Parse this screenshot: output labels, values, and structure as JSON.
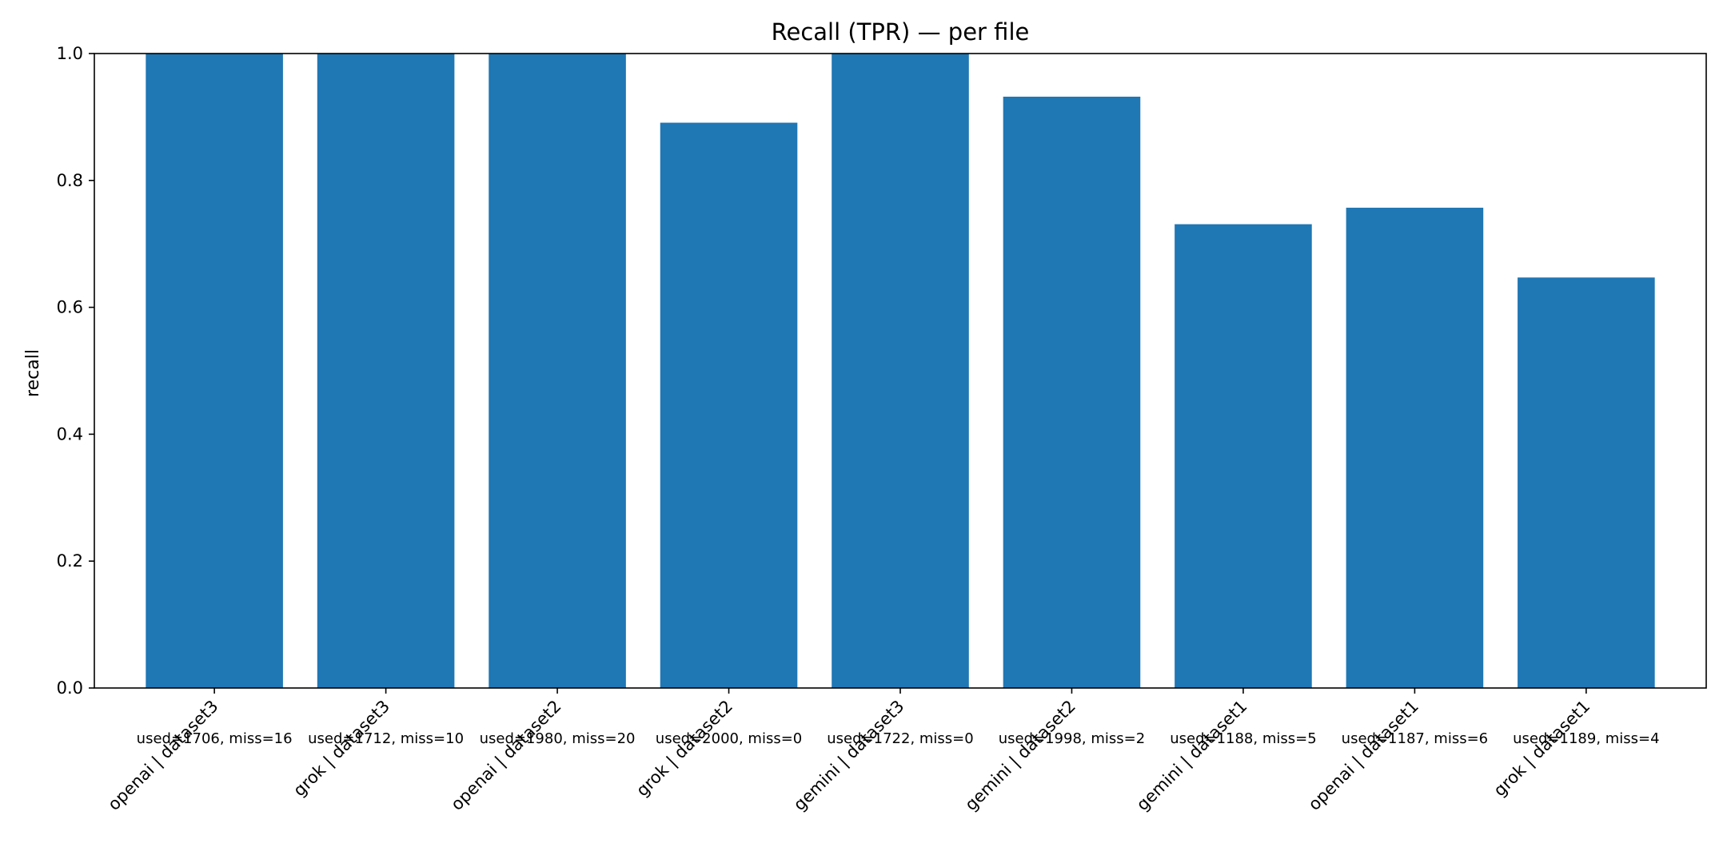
{
  "chart_data": {
    "type": "bar",
    "title": "Recall (TPR) — per file",
    "xlabel": "",
    "ylabel": "recall",
    "ylim": [
      0,
      1.0
    ],
    "yticks": [
      "0.0",
      "0.2",
      "0.4",
      "0.6",
      "0.8",
      "1.0"
    ],
    "grid": false,
    "bar_color": "#1f77b4",
    "categories": [
      "openai | dataset3",
      "grok | dataset3",
      "openai | dataset2",
      "grok | dataset2",
      "gemini | dataset3",
      "gemini | dataset2",
      "gemini | dataset1",
      "openai | dataset1",
      "grok | dataset1"
    ],
    "values": [
      1.0,
      1.0,
      1.0,
      0.891,
      1.0,
      0.932,
      0.731,
      0.757,
      0.647
    ],
    "annotations": [
      "used=1706, miss=16",
      "used=1712, miss=10",
      "used=1980, miss=20",
      "used=2000, miss=0",
      "used=1722, miss=0",
      "used=1998, miss=2",
      "used=1188, miss=5",
      "used=1187, miss=6",
      "used=1189, miss=4"
    ]
  }
}
